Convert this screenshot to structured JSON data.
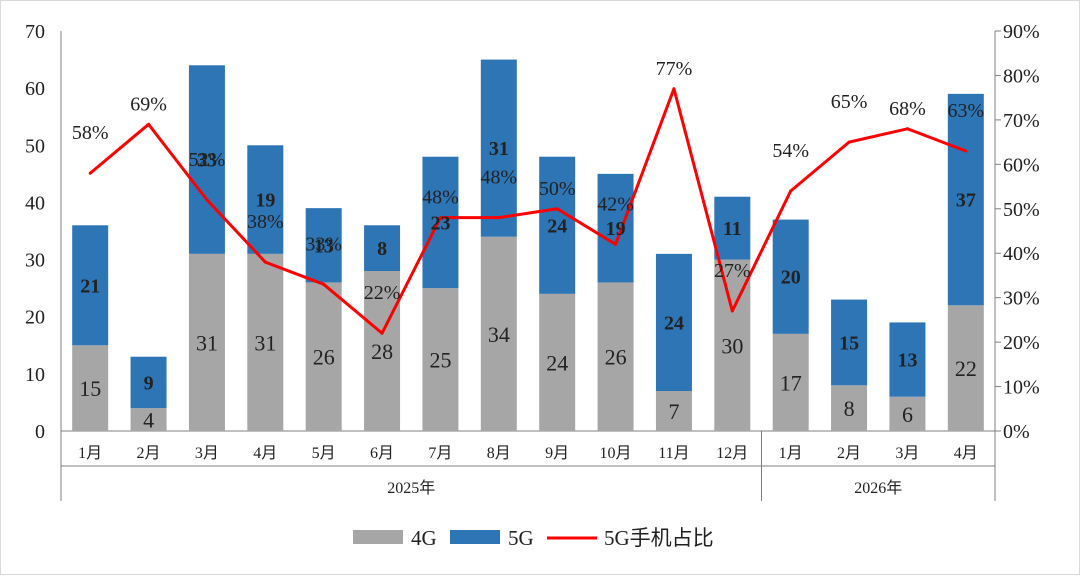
{
  "chart_data": {
    "type": "bar",
    "stacked": true,
    "groups": [
      {
        "label": "2025年",
        "categories": [
          "1月",
          "2月",
          "3月",
          "4月",
          "5月",
          "6月",
          "7月",
          "8月",
          "9月",
          "10月",
          "11月",
          "12月"
        ]
      },
      {
        "label": "2026年",
        "categories": [
          "1月",
          "2月",
          "3月",
          "4月"
        ]
      }
    ],
    "series": [
      {
        "name": "4G",
        "color": "#a6a6a6",
        "values": [
          15,
          4,
          31,
          31,
          26,
          28,
          25,
          34,
          24,
          26,
          7,
          30,
          17,
          8,
          6,
          22
        ]
      },
      {
        "name": "5G",
        "color": "#2e75b6",
        "values": [
          21,
          9,
          33,
          19,
          13,
          8,
          23,
          31,
          24,
          19,
          24,
          11,
          20,
          15,
          13,
          37
        ]
      }
    ],
    "line": {
      "name": "5G手机占比",
      "color": "#ff0000",
      "values": [
        58,
        69,
        52,
        38,
        33,
        22,
        48,
        48,
        50,
        42,
        77,
        27,
        54,
        65,
        68,
        63
      ],
      "labels": [
        "58%",
        "69%",
        "52%",
        "38%",
        "33%",
        "22%",
        "48%",
        "48%",
        "50%",
        "42%",
        "77%",
        "27%",
        "54%",
        "65%",
        "68%",
        "63%"
      ]
    },
    "y_left": {
      "min": 0,
      "max": 70,
      "ticks": [
        "0",
        "10",
        "20",
        "30",
        "40",
        "50",
        "60",
        "70"
      ]
    },
    "y_right": {
      "min": 0,
      "max": 90,
      "ticks": [
        "0%",
        "10%",
        "20%",
        "30%",
        "40%",
        "50%",
        "60%",
        "70%",
        "80%",
        "90%"
      ]
    },
    "legend": {
      "position": "bottom",
      "items": [
        "4G",
        "5G",
        "5G手机占比"
      ]
    },
    "grid": false
  }
}
